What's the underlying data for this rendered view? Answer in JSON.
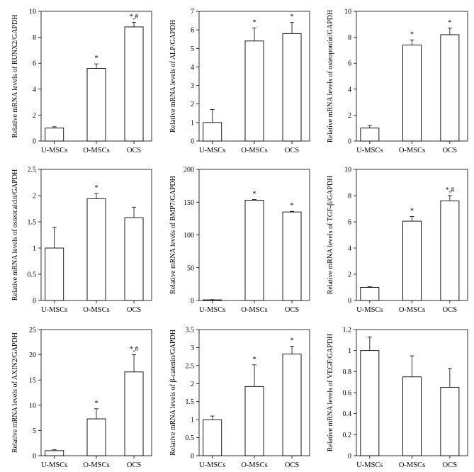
{
  "chart_data": [
    {
      "type": "bar",
      "ylabel": "Relative mRNA levels of RUNX2/GAPDH",
      "categories": [
        "U-MSCs",
        "O-MSCs",
        "OCS"
      ],
      "values": [
        1.0,
        5.6,
        8.8
      ],
      "errors": [
        0.1,
        0.35,
        0.35
      ],
      "significance": [
        "",
        "*",
        "*,#"
      ],
      "ylim": [
        0,
        10
      ],
      "yticks": [
        0,
        2,
        4,
        6,
        8,
        10
      ]
    },
    {
      "type": "bar",
      "ylabel": "Relative mRNA levels of ALP/GAPDH",
      "categories": [
        "U-MSCs",
        "O-MSCs",
        "OCS"
      ],
      "values": [
        1.0,
        5.4,
        5.8
      ],
      "errors": [
        0.7,
        0.7,
        0.6
      ],
      "significance": [
        "",
        "*",
        "*"
      ],
      "ylim": [
        0,
        7
      ],
      "yticks": [
        0,
        1,
        2,
        3,
        4,
        5,
        6,
        7
      ]
    },
    {
      "type": "bar",
      "ylabel": "Relative mRNA levels of osteopontin/GAPDH",
      "categories": [
        "U-MSCs",
        "O-MSCs",
        "OCS"
      ],
      "values": [
        1.0,
        7.4,
        8.2
      ],
      "errors": [
        0.2,
        0.4,
        0.5
      ],
      "significance": [
        "",
        "*",
        "*"
      ],
      "ylim": [
        0,
        10
      ],
      "yticks": [
        0,
        2,
        4,
        6,
        8,
        10
      ]
    },
    {
      "type": "bar",
      "ylabel": "Relative mRNA levels of osteocalcin/GAPDH",
      "categories": [
        "U-MSCs",
        "O-MSCs",
        "OCS"
      ],
      "values": [
        1.0,
        1.94,
        1.58
      ],
      "errors": [
        0.4,
        0.1,
        0.2
      ],
      "significance": [
        "",
        "*",
        ""
      ],
      "ylim": [
        0,
        2.5
      ],
      "yticks": [
        0,
        0.5,
        1,
        1.5,
        2,
        2.5
      ]
    },
    {
      "type": "bar",
      "ylabel": "Relative mRNA levels of BMP7/GAPDH",
      "categories": [
        "U-MSCs",
        "O-MSCs",
        "OCS"
      ],
      "values": [
        1.0,
        153,
        135
      ],
      "errors": [
        0.3,
        1.0,
        1.0
      ],
      "significance": [
        "",
        "*",
        "*"
      ],
      "ylim": [
        0,
        200
      ],
      "yticks": [
        0,
        50,
        100,
        150,
        200
      ]
    },
    {
      "type": "bar",
      "ylabel": "Relative mRNA levels of TGF-β/GAPDH",
      "categories": [
        "U-MSCs",
        "O-MSCs",
        "OCS"
      ],
      "values": [
        1.0,
        6.05,
        7.6
      ],
      "errors": [
        0.05,
        0.35,
        0.4
      ],
      "significance": [
        "",
        "*",
        "*,#"
      ],
      "ylim": [
        0,
        10
      ],
      "yticks": [
        0,
        2,
        4,
        6,
        8,
        10
      ]
    },
    {
      "type": "bar",
      "ylabel": "Relative mRNA levels of AXIN2/GAPDH",
      "categories": [
        "U-MSCs",
        "O-MSCs",
        "OCS"
      ],
      "values": [
        1.0,
        7.3,
        16.6
      ],
      "errors": [
        0.2,
        2.0,
        3.4
      ],
      "significance": [
        "",
        "*",
        "*,#"
      ],
      "ylim": [
        0,
        25
      ],
      "yticks": [
        0,
        5,
        10,
        15,
        20,
        25
      ]
    },
    {
      "type": "bar",
      "ylabel": "Relative mRNA levels of β-catenin/GAPDH",
      "categories": [
        "U-MSCs",
        "O-MSCs",
        "OCS"
      ],
      "values": [
        1.0,
        1.92,
        2.82
      ],
      "errors": [
        0.1,
        0.6,
        0.22
      ],
      "significance": [
        "",
        "*",
        "*"
      ],
      "ylim": [
        0,
        3.5
      ],
      "yticks": [
        0,
        0.5,
        1,
        1.5,
        2,
        2.5,
        3,
        3.5
      ]
    },
    {
      "type": "bar",
      "ylabel": "Relative mRNA levels of VEGF/GAPDH",
      "categories": [
        "U-MSCs",
        "O-MSCs",
        "OCS"
      ],
      "values": [
        1.0,
        0.75,
        0.65
      ],
      "errors": [
        0.13,
        0.2,
        0.18
      ],
      "significance": [
        "",
        "",
        ""
      ],
      "ylim": [
        0,
        1.2
      ],
      "yticks": [
        0,
        0.2,
        0.4,
        0.6,
        0.8,
        1,
        1.2
      ]
    }
  ]
}
